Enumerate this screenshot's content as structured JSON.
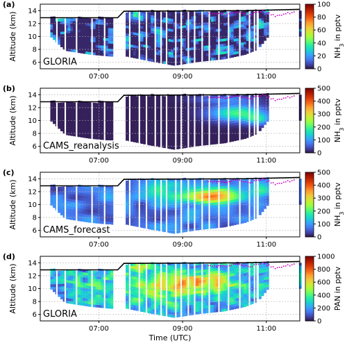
{
  "chart_data": [
    {
      "type": "heatmap",
      "panel_label": "(a)",
      "inner_label": "GLORIA",
      "ylabel": "Altitude (km)",
      "xlabel": "",
      "y_ticks": [
        "6",
        "8",
        "10",
        "12",
        "14"
      ],
      "x_ticks": [
        "07:00",
        "09:00",
        "11:00"
      ],
      "colorbar": {
        "label": "NH3 in pptv",
        "max": 100,
        "ticks": [
          "0",
          "20",
          "40",
          "60",
          "80",
          "100"
        ]
      },
      "field": "gloria_nh3"
    },
    {
      "type": "heatmap",
      "panel_label": "(b)",
      "inner_label": "CAMS_reanalysis",
      "ylabel": "Altitude (km)",
      "xlabel": "",
      "y_ticks": [
        "6",
        "8",
        "10",
        "12",
        "14"
      ],
      "x_ticks": [
        "07:00",
        "09:00",
        "11:00"
      ],
      "colorbar": {
        "label": "NH3 in pptv",
        "max": 500,
        "ticks": [
          "0",
          "100",
          "200",
          "300",
          "400",
          "500"
        ]
      },
      "field": "reanalysis"
    },
    {
      "type": "heatmap",
      "panel_label": "(c)",
      "inner_label": "CAMS_forecast",
      "ylabel": "Altitude (km)",
      "xlabel": "",
      "y_ticks": [
        "6",
        "8",
        "10",
        "12",
        "14"
      ],
      "x_ticks": [
        "07:00",
        "09:00",
        "11:00"
      ],
      "colorbar": {
        "label": "NH3 in pptv",
        "max": 500,
        "ticks": [
          "0",
          "100",
          "200",
          "300",
          "400",
          "500"
        ]
      },
      "field": "forecast"
    },
    {
      "type": "heatmap",
      "panel_label": "(d)",
      "inner_label": "GLORIA",
      "ylabel": "Altitude (km)",
      "xlabel": "Time (UTC)",
      "y_ticks": [
        "6",
        "8",
        "10",
        "12",
        "14"
      ],
      "x_ticks": [
        "07:00",
        "09:00",
        "11:00"
      ],
      "colorbar": {
        "label": "PAN in pptv",
        "max": 1000,
        "ticks": [
          "0",
          "200",
          "400",
          "600",
          "800",
          "1000"
        ]
      },
      "field": "gloria_pan"
    }
  ],
  "shared": {
    "time_range_hours": [
      5.6,
      11.8
    ],
    "altitude_range_km": [
      5,
      15
    ],
    "flight_altitude": {
      "t": [
        5.6,
        7.45,
        7.6,
        10.5,
        11.8
      ],
      "alt": [
        12.9,
        12.9,
        13.9,
        14.0,
        14.2
      ]
    },
    "cloud_top_markers": {
      "t": [
        9.7,
        10.0,
        10.3,
        10.6,
        10.9,
        11.2,
        11.5
      ],
      "alt": [
        13.8,
        13.7,
        14.1,
        13.6,
        14.2,
        13.4,
        13.9
      ],
      "color": "#d000c0"
    },
    "colormap": [
      "#30123b",
      "#4145ab",
      "#4675ed",
      "#39a2fc",
      "#1bcfd4",
      "#24eca6",
      "#61fc6c",
      "#a4fc3b",
      "#d1e834",
      "#f3c63a",
      "#fe9b2d",
      "#f36315",
      "#d93806",
      "#b11901",
      "#7a0402"
    ]
  }
}
